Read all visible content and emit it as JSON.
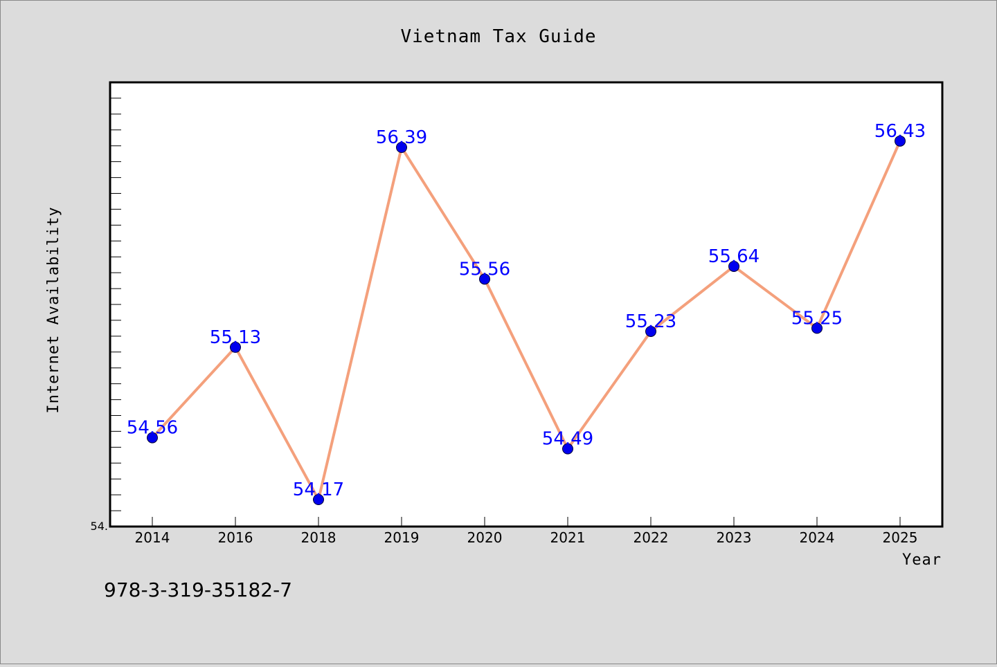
{
  "chart_data": {
    "type": "line",
    "title": "Vietnam Tax Guide",
    "xlabel": "Year",
    "ylabel": "Internet Availability",
    "categories": [
      "2014",
      "2016",
      "2018",
      "2019",
      "2020",
      "2021",
      "2022",
      "2023",
      "2024",
      "2025"
    ],
    "values": [
      54.56,
      55.13,
      54.17,
      56.39,
      55.56,
      54.49,
      55.23,
      55.64,
      55.25,
      56.43
    ],
    "value_labels": [
      "54.56",
      "55.13",
      "54.17",
      "56.39",
      "55.56",
      "54.49",
      "55.23",
      "55.64",
      "55.25",
      "56.43"
    ],
    "ylim": [
      54.0,
      56.8
    ],
    "y_tick_label": "54.",
    "grid": false,
    "line_color": "#f4a07c",
    "marker_color": "#0000ee",
    "label_color": "#0000ff"
  },
  "footer": {
    "isbn": "978-3-319-35182-7"
  }
}
